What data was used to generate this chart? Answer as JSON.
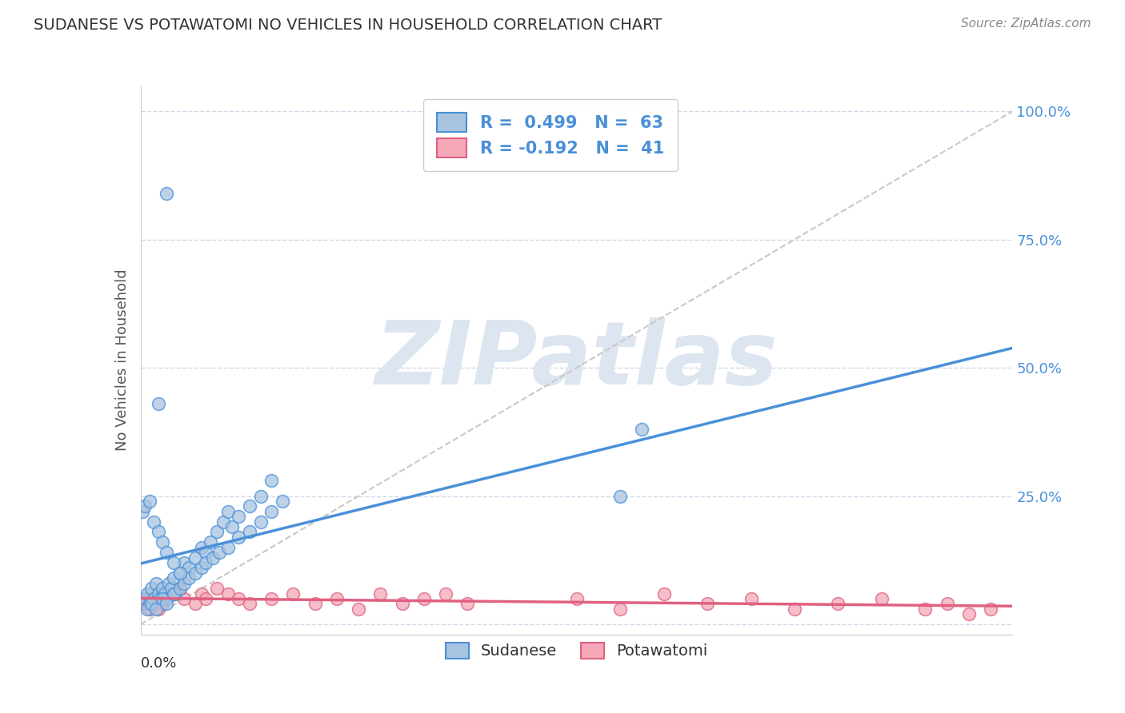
{
  "title": "SUDANESE VS POTAWATOMI NO VEHICLES IN HOUSEHOLD CORRELATION CHART",
  "source_text": "Source: ZipAtlas.com",
  "ylabel": "No Vehicles in Household",
  "right_yticklabels": [
    "",
    "25.0%",
    "50.0%",
    "75.0%",
    "100.0%"
  ],
  "xmin": 0.0,
  "xmax": 0.4,
  "ymin": -0.02,
  "ymax": 1.05,
  "sudanese_R": 0.499,
  "sudanese_N": 63,
  "potawatomi_R": -0.192,
  "potawatomi_N": 41,
  "blue_color": "#a8c4e0",
  "pink_color": "#f4a8b8",
  "blue_line_color": "#4a90d9",
  "pink_line_color": "#e06080",
  "ref_line_color": "#c8c8c8",
  "grid_color": "#d0d8e8",
  "title_color": "#333333",
  "watermark_color": "#dde6f0",
  "legend_R_color": "#4a90d9",
  "sudanese_x": [
    0.002,
    0.003,
    0.004,
    0.005,
    0.006,
    0.007,
    0.008,
    0.009,
    0.01,
    0.011,
    0.012,
    0.013,
    0.014,
    0.015,
    0.016,
    0.018,
    0.02,
    0.022,
    0.025,
    0.028,
    0.03,
    0.032,
    0.035,
    0.038,
    0.04,
    0.042,
    0.045,
    0.05,
    0.055,
    0.06,
    0.003,
    0.005,
    0.007,
    0.01,
    0.012,
    0.015,
    0.018,
    0.02,
    0.022,
    0.025,
    0.028,
    0.03,
    0.033,
    0.036,
    0.04,
    0.045,
    0.05,
    0.055,
    0.06,
    0.065,
    0.001,
    0.002,
    0.004,
    0.006,
    0.008,
    0.01,
    0.012,
    0.015,
    0.018,
    0.22,
    0.008,
    0.012,
    0.23
  ],
  "sudanese_y": [
    0.05,
    0.06,
    0.04,
    0.07,
    0.05,
    0.08,
    0.06,
    0.05,
    0.07,
    0.06,
    0.05,
    0.08,
    0.07,
    0.09,
    0.06,
    0.1,
    0.12,
    0.11,
    0.13,
    0.15,
    0.14,
    0.16,
    0.18,
    0.2,
    0.22,
    0.19,
    0.21,
    0.23,
    0.25,
    0.28,
    0.03,
    0.04,
    0.03,
    0.05,
    0.04,
    0.06,
    0.07,
    0.08,
    0.09,
    0.1,
    0.11,
    0.12,
    0.13,
    0.14,
    0.15,
    0.17,
    0.18,
    0.2,
    0.22,
    0.24,
    0.22,
    0.23,
    0.24,
    0.2,
    0.18,
    0.16,
    0.14,
    0.12,
    0.1,
    0.25,
    0.43,
    0.84,
    0.38
  ],
  "potawatomi_x": [
    0.002,
    0.003,
    0.004,
    0.005,
    0.006,
    0.007,
    0.008,
    0.01,
    0.012,
    0.015,
    0.018,
    0.02,
    0.025,
    0.028,
    0.03,
    0.035,
    0.04,
    0.045,
    0.05,
    0.06,
    0.07,
    0.08,
    0.09,
    0.1,
    0.11,
    0.12,
    0.13,
    0.14,
    0.15,
    0.2,
    0.22,
    0.24,
    0.26,
    0.28,
    0.3,
    0.32,
    0.34,
    0.36,
    0.37,
    0.38,
    0.39
  ],
  "potawatomi_y": [
    0.04,
    0.05,
    0.03,
    0.06,
    0.04,
    0.05,
    0.03,
    0.04,
    0.05,
    0.06,
    0.07,
    0.05,
    0.04,
    0.06,
    0.05,
    0.07,
    0.06,
    0.05,
    0.04,
    0.05,
    0.06,
    0.04,
    0.05,
    0.03,
    0.06,
    0.04,
    0.05,
    0.06,
    0.04,
    0.05,
    0.03,
    0.06,
    0.04,
    0.05,
    0.03,
    0.04,
    0.05,
    0.03,
    0.04,
    0.02,
    0.03
  ]
}
